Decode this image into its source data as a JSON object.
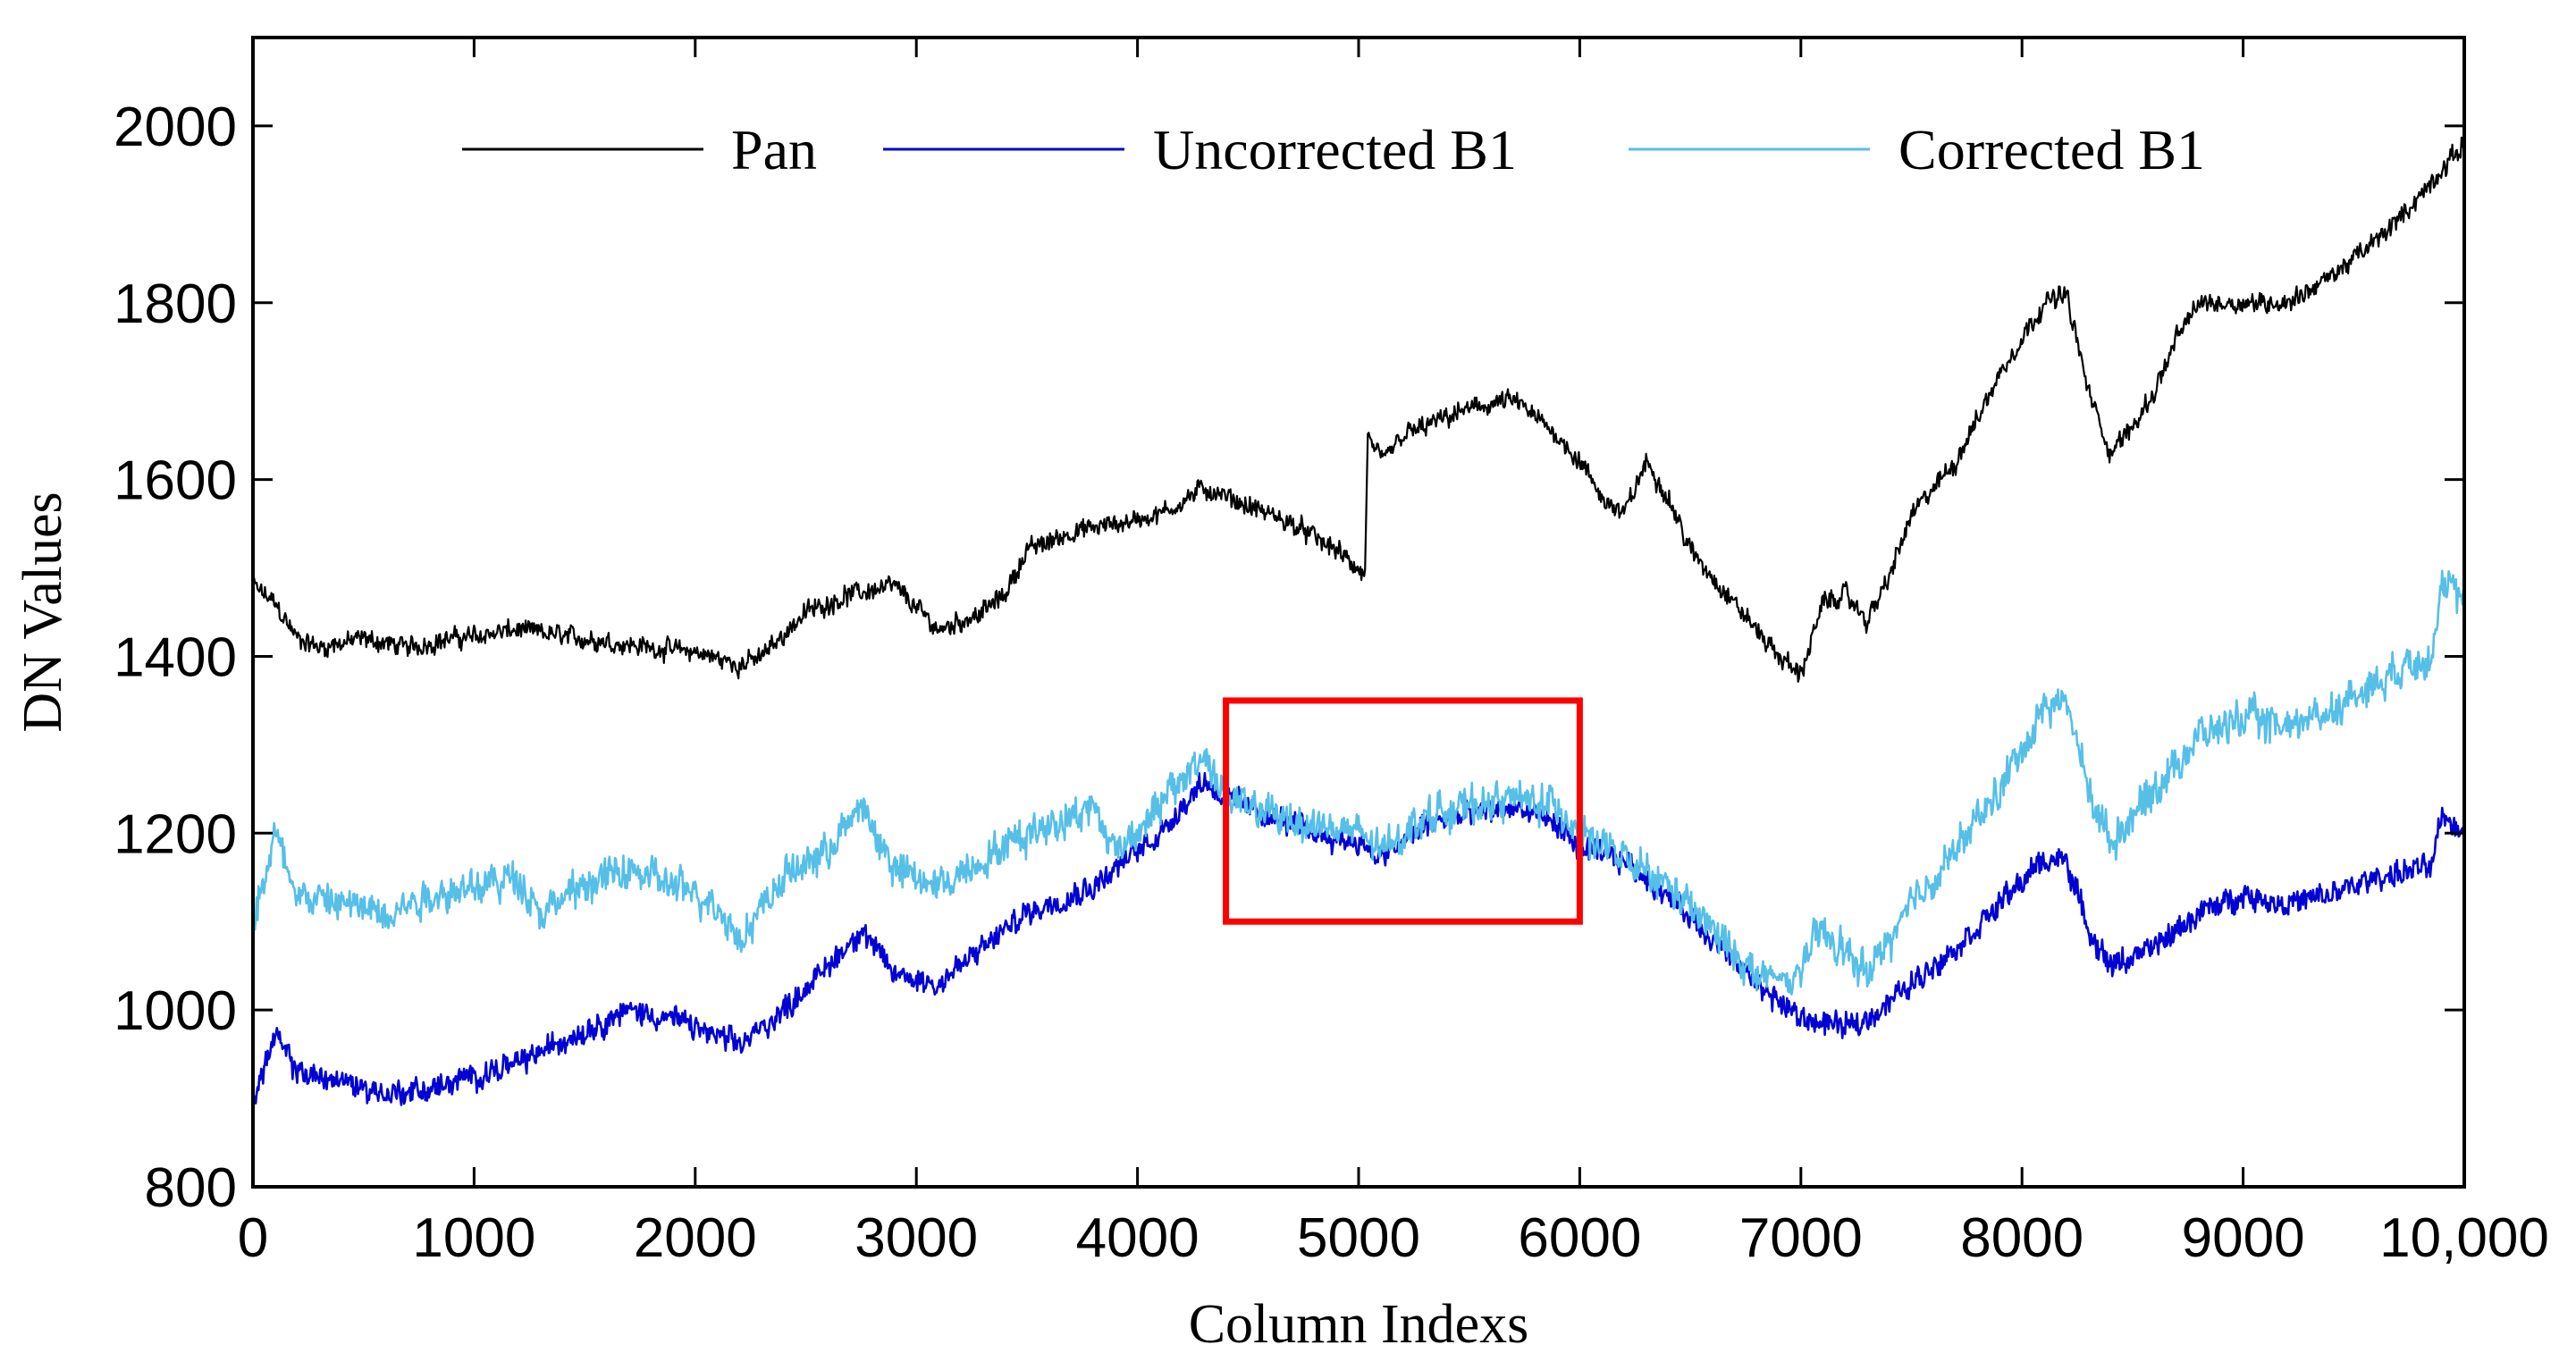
{
  "chart_data": {
    "type": "line",
    "title": "",
    "xlabel": "Column Indexs",
    "ylabel": "DN Values",
    "xlim": [
      0,
      10000
    ],
    "ylim": [
      800,
      2100
    ],
    "xticks": [
      0,
      1000,
      2000,
      3000,
      4000,
      5000,
      6000,
      7000,
      8000,
      9000,
      10000
    ],
    "xtick_labels": [
      "0",
      "1000",
      "2000",
      "3000",
      "4000",
      "5000",
      "6000",
      "7000",
      "8000",
      "9000",
      "10,000"
    ],
    "yticks": [
      800,
      1000,
      1200,
      1400,
      1600,
      1800,
      2000
    ],
    "ytick_labels": [
      "800",
      "1000",
      "1200",
      "1400",
      "1600",
      "1800",
      "2000"
    ],
    "grid": false,
    "legend": {
      "placement": "top",
      "entries": [
        "Pan",
        "Uncorrected B1",
        "Corrected B1"
      ]
    },
    "noise_amplitude": [
      12,
      15,
      22
    ],
    "series": [
      {
        "name": "Pan",
        "color": "#000000",
        "x": [
          0,
          100,
          200,
          300,
          500,
          700,
          900,
          1200,
          1500,
          1800,
          2000,
          2200,
          2300,
          2500,
          2700,
          2900,
          3100,
          3300,
          3400,
          3500,
          3700,
          3900,
          4100,
          4300,
          4500,
          4700,
          4900,
          5030,
          5040,
          5100,
          5200,
          5300,
          5500,
          5700,
          5900,
          6000,
          6100,
          6200,
          6300,
          6400,
          6500,
          6700,
          6900,
          7000,
          7100,
          7200,
          7300,
          7400,
          7500,
          7700,
          7900,
          8100,
          8200,
          8300,
          8400,
          8500,
          8600,
          8700,
          8800,
          9000,
          9200,
          9400,
          9600,
          9800,
          10000
        ],
        "values": [
          1480,
          1460,
          1420,
          1410,
          1420,
          1410,
          1420,
          1430,
          1420,
          1410,
          1405,
          1390,
          1400,
          1450,
          1470,
          1480,
          1430,
          1450,
          1470,
          1520,
          1540,
          1550,
          1560,
          1590,
          1570,
          1550,
          1520,
          1490,
          1650,
          1620,
          1650,
          1660,
          1680,
          1690,
          1650,
          1620,
          1580,
          1560,
          1620,
          1580,
          1520,
          1460,
          1400,
          1380,
          1460,
          1470,
          1440,
          1490,
          1560,
          1620,
          1720,
          1800,
          1810,
          1700,
          1630,
          1660,
          1700,
          1760,
          1800,
          1800,
          1800,
          1830,
          1870,
          1920,
          1980
        ]
      },
      {
        "name": "Uncorrected B1",
        "color": "#0000d4",
        "x": [
          0,
          100,
          200,
          400,
          600,
          800,
          1000,
          1200,
          1400,
          1700,
          1900,
          2200,
          2400,
          2600,
          2750,
          2900,
          3100,
          3300,
          3500,
          3800,
          3900,
          4100,
          4300,
          4400,
          4600,
          4800,
          5000,
          5100,
          5300,
          5500,
          5700,
          5900,
          6000,
          6200,
          6400,
          6600,
          6800,
          7000,
          7200,
          7300,
          7500,
          7700,
          7900,
          8100,
          8200,
          8300,
          8400,
          8600,
          8800,
          9000,
          9200,
          9400,
          9600,
          9800,
          9850,
          9900,
          10000
        ],
        "values": [
          900,
          970,
          930,
          920,
          905,
          910,
          925,
          940,
          965,
          1000,
          990,
          960,
          1000,
          1050,
          1090,
          1040,
          1030,
          1070,
          1110,
          1140,
          1160,
          1200,
          1260,
          1240,
          1220,
          1200,
          1190,
          1170,
          1210,
          1220,
          1230,
          1210,
          1180,
          1170,
          1130,
          1080,
          1030,
          990,
          980,
          990,
          1030,
          1070,
          1120,
          1170,
          1170,
          1090,
          1050,
          1070,
          1110,
          1130,
          1120,
          1130,
          1150,
          1160,
          1160,
          1220,
          1200
        ]
      },
      {
        "name": "Corrected B1",
        "color": "#56bfe8",
        "x": [
          0,
          100,
          200,
          400,
          600,
          800,
          1000,
          1200,
          1300,
          1500,
          1700,
          1900,
          2100,
          2200,
          2400,
          2600,
          2750,
          2900,
          3100,
          3300,
          3500,
          3800,
          3900,
          4100,
          4300,
          4400,
          4600,
          4800,
          5000,
          5100,
          5300,
          5500,
          5700,
          5900,
          6000,
          6200,
          6400,
          6600,
          6800,
          6950,
          7100,
          7300,
          7500,
          7700,
          7900,
          8100,
          8200,
          8300,
          8400,
          8600,
          8800,
          9000,
          9200,
          9400,
          9600,
          9800,
          9850,
          9900,
          10000
        ],
        "values": [
          1100,
          1200,
          1130,
          1120,
          1110,
          1130,
          1140,
          1150,
          1110,
          1140,
          1160,
          1140,
          1120,
          1080,
          1150,
          1180,
          1230,
          1160,
          1140,
          1170,
          1200,
          1230,
          1180,
          1230,
          1290,
          1240,
          1220,
          1210,
          1200,
          1180,
          1220,
          1230,
          1240,
          1230,
          1200,
          1170,
          1140,
          1090,
          1040,
          1030,
          1090,
          1040,
          1120,
          1180,
          1250,
          1340,
          1350,
          1250,
          1190,
          1250,
          1310,
          1330,
          1320,
          1340,
          1370,
          1400,
          1400,
          1480,
          1460
        ]
      }
    ],
    "annotations": [
      {
        "type": "rectangle",
        "color": "#ff0000",
        "x_range": [
          4400,
          6000
        ],
        "y_range": [
          1100,
          1350
        ]
      }
    ]
  }
}
